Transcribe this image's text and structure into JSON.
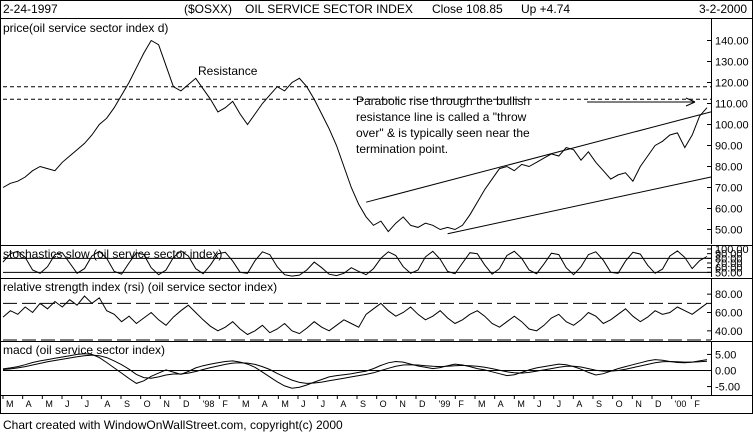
{
  "header": {
    "start_date": "2-24-1997",
    "symbol": "($OSXX)",
    "name": "OIL SERVICE SECTOR INDEX",
    "close": "Close 108.85",
    "change": "Up +4.74",
    "end_date": "3-2-2000"
  },
  "footer": "Chart created with WindowOnWallStreet.com, copyright(c) 2000",
  "chart_data": [
    {
      "type": "line",
      "title": "price(oil service sector index d)",
      "ylim": [
        45,
        145
      ],
      "yticks": [
        "140.00",
        "130.00",
        "120.00",
        "110.00",
        "100.00",
        "90.00",
        "80.00",
        "70.00",
        "60.00",
        "50.00"
      ],
      "reference_lines": [
        118,
        112
      ],
      "annotations": [
        "Resistance",
        "Parabolic rise through the bullish",
        "resistance line is called a \"throw",
        "over\" & is typically seen near the",
        "termination point."
      ],
      "series": [
        {
          "values": [
            70,
            72,
            73,
            75,
            78,
            80,
            79,
            78,
            82,
            85,
            88,
            91,
            95,
            100,
            103,
            108,
            114,
            120,
            127,
            134,
            140,
            138,
            128,
            118,
            116,
            119,
            122,
            117,
            112,
            106,
            108,
            111,
            105,
            100,
            105,
            110,
            114,
            118,
            116,
            120,
            122,
            118,
            112,
            105,
            98,
            90,
            80,
            70,
            62,
            56,
            52,
            54,
            49,
            53,
            56,
            52,
            51,
            53,
            52,
            50,
            51,
            50,
            52,
            57,
            63,
            69,
            74,
            79,
            80,
            78,
            81,
            80,
            82,
            84,
            86,
            85,
            89,
            88,
            83,
            87,
            82,
            78,
            74,
            76,
            77,
            73,
            80,
            85,
            90,
            92,
            95,
            96,
            89,
            95,
            104,
            108
          ]
        }
      ]
    },
    {
      "type": "line",
      "title": "stochastics slow (oil service sector index)",
      "ylim": [
        40,
        100
      ],
      "yticks": [
        "100.00",
        "90.00",
        "80.00",
        "70.00",
        "60.00",
        "50.00"
      ],
      "reference_lines": [
        80,
        50
      ],
      "series": [
        {
          "values": [
            72,
            90,
            95,
            82,
            55,
            48,
            62,
            88,
            92,
            70,
            48,
            58,
            85,
            95,
            80,
            52,
            46,
            70,
            92,
            88,
            60,
            45,
            55,
            82,
            96,
            85,
            58,
            47,
            66,
            90,
            93,
            74,
            50,
            48,
            75,
            94,
            88,
            62,
            45,
            42,
            44,
            55,
            72,
            60,
            46,
            43,
            48,
            60,
            52,
            45,
            58,
            80,
            94,
            86,
            62,
            48,
            55,
            83,
            95,
            78,
            52,
            47,
            70,
            92,
            90,
            66,
            46,
            58,
            86,
            95,
            80,
            55,
            47,
            68,
            91,
            88,
            60,
            45,
            62,
            88,
            94,
            76,
            50,
            48,
            74,
            93,
            89,
            65,
            48,
            57,
            85,
            96,
            82,
            58,
            75,
            84
          ]
        }
      ]
    },
    {
      "type": "line",
      "title": "relative strength index (rsi) (oil service sector index)",
      "ylim": [
        30,
        90
      ],
      "yticks": [
        "80.00",
        "60.00",
        "40.00"
      ],
      "reference_lines": [
        70,
        30
      ],
      "series": [
        {
          "values": [
            55,
            62,
            58,
            66,
            60,
            70,
            64,
            72,
            66,
            74,
            68,
            78,
            70,
            76,
            62,
            58,
            50,
            56,
            48,
            54,
            60,
            52,
            46,
            55,
            62,
            68,
            60,
            52,
            45,
            40,
            44,
            50,
            42,
            36,
            40,
            46,
            38,
            42,
            48,
            40,
            37,
            43,
            50,
            44,
            40,
            46,
            52,
            48,
            44,
            58,
            64,
            70,
            62,
            56,
            60,
            66,
            58,
            52,
            56,
            62,
            54,
            48,
            52,
            58,
            62,
            56,
            48,
            44,
            50,
            56,
            50,
            42,
            40,
            46,
            54,
            58,
            50,
            46,
            52,
            60,
            56,
            48,
            52,
            58,
            64,
            56,
            50,
            55,
            62,
            58,
            60,
            66,
            62,
            58,
            64,
            70
          ]
        }
      ]
    },
    {
      "type": "line",
      "title": "macd (oil service sector index)",
      "ylim": [
        -7,
        7
      ],
      "yticks": [
        "5.00",
        "0.00",
        "-5.00"
      ],
      "reference_lines": [
        0
      ],
      "series": [
        {
          "values": [
            0.5,
            0.8,
            1.2,
            1.8,
            2.5,
            3.0,
            3.4,
            3.8,
            4.2,
            4.6,
            5.0,
            5.2,
            5.0,
            4.0,
            2.5,
            0.8,
            -0.8,
            -2.5,
            -4.0,
            -3.2,
            -1.8,
            -0.8,
            0.2,
            -0.5,
            -1.2,
            -0.3,
            0.8,
            1.5,
            2.0,
            2.4,
            2.8,
            3.0,
            2.6,
            2.0,
            1.0,
            -0.5,
            -2.0,
            -3.5,
            -4.8,
            -5.5,
            -5.2,
            -4.5,
            -3.6,
            -2.8,
            -2.0,
            -1.6,
            -1.3,
            -1.0,
            -0.6,
            -0.2,
            0.6,
            1.6,
            2.4,
            2.8,
            2.6,
            2.0,
            1.4,
            1.0,
            0.6,
            0.9,
            1.5,
            2.0,
            1.7,
            1.2,
            0.6,
            0.2,
            -0.4,
            -1.0,
            -1.6,
            -1.3,
            -0.6,
            0.2,
            0.8,
            1.2,
            1.6,
            2.0,
            1.8,
            1.2,
            0.4,
            -0.6,
            -1.4,
            -1.0,
            -0.2,
            0.6,
            1.2,
            1.8,
            2.4,
            3.0,
            3.4,
            3.2,
            2.8,
            2.5,
            2.4,
            2.6,
            3.0,
            3.4
          ]
        },
        {
          "values": [
            0.3,
            0.5,
            0.8,
            1.2,
            1.7,
            2.2,
            2.7,
            3.1,
            3.5,
            3.9,
            4.3,
            4.6,
            4.8,
            4.6,
            4.0,
            3.0,
            1.8,
            0.4,
            -1.2,
            -2.2,
            -2.4,
            -2.0,
            -1.4,
            -1.1,
            -1.1,
            -0.8,
            -0.3,
            0.3,
            0.9,
            1.4,
            1.9,
            2.3,
            2.4,
            2.3,
            1.9,
            1.2,
            0.3,
            -0.9,
            -2.0,
            -3.0,
            -3.7,
            -4.0,
            -3.9,
            -3.6,
            -3.2,
            -2.8,
            -2.4,
            -2.0,
            -1.6,
            -1.2,
            -0.7,
            0.0,
            0.7,
            1.3,
            1.7,
            1.8,
            1.7,
            1.5,
            1.3,
            1.2,
            1.3,
            1.5,
            1.6,
            1.5,
            1.3,
            1.0,
            0.6,
            0.1,
            -0.4,
            -0.7,
            -0.8,
            -0.6,
            -0.2,
            0.2,
            0.6,
            1.0,
            1.3,
            1.3,
            1.1,
            0.6,
            0.1,
            -0.2,
            -0.2,
            0.0,
            0.4,
            0.9,
            1.4,
            1.9,
            2.4,
            2.7,
            2.8,
            2.7,
            2.6,
            2.6,
            2.7,
            2.9
          ]
        }
      ]
    }
  ],
  "x_axis": {
    "months": [
      "M",
      "A",
      "M",
      "J",
      "J",
      "A",
      "S",
      "O",
      "N",
      "D",
      "'98",
      "F",
      "M",
      "A",
      "M",
      "J",
      "J",
      "A",
      "S",
      "O",
      "N",
      "D",
      "'99",
      "F",
      "M",
      "A",
      "M",
      "J",
      "J",
      "A",
      "S",
      "O",
      "N",
      "D",
      "'00",
      "F"
    ]
  }
}
